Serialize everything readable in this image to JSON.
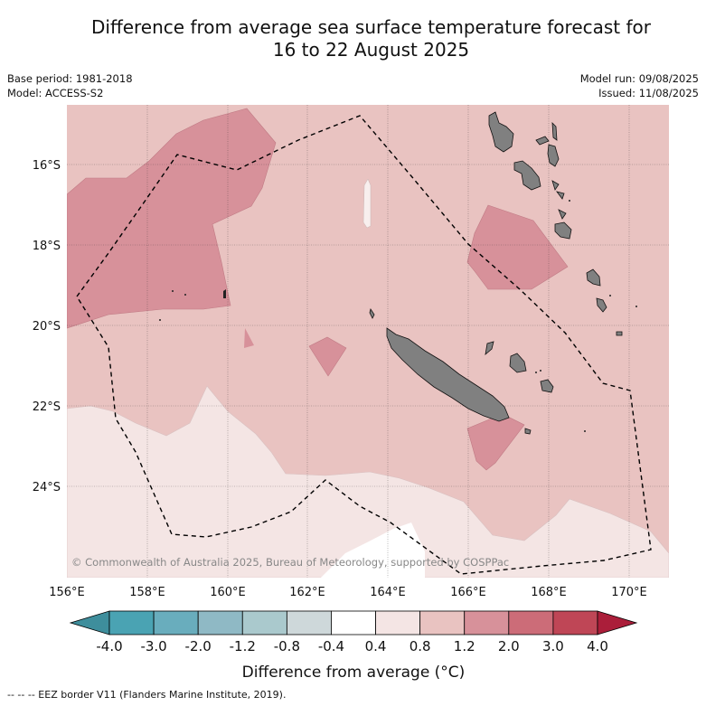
{
  "title_line1": "Difference from average sea surface temperature forecast for",
  "title_line2": "16 to 22 August 2025",
  "base_period": "Base period: 1981-2018",
  "model": "Model: ACCESS-S2",
  "model_run": "Model run: 09/08/2025",
  "issued": "Issued: 11/08/2025",
  "copyright": "© Commonwealth of Australia 2025, Bureau of Meteorology, supported by COSPPac",
  "lon_labels": [
    "156°E",
    "158°E",
    "160°E",
    "162°E",
    "164°E",
    "166°E",
    "168°E",
    "170°E"
  ],
  "lat_labels": [
    "16°S",
    "18°S",
    "20°S",
    "22°S",
    "24°S"
  ],
  "colorbar": {
    "ticks": [
      "-4.0",
      "-3.0",
      "-2.0",
      "-1.2",
      "-0.8",
      "-0.4",
      "0.4",
      "0.8",
      "1.2",
      "2.0",
      "3.0",
      "4.0"
    ],
    "colors": [
      "#3e8e9c",
      "#4aa3b3",
      "#69adbd",
      "#8fb9c5",
      "#aac9cd",
      "#ced8da",
      "#ffffff",
      "#f4e5e4",
      "#e9c3c1",
      "#d7919a",
      "#cc6c78",
      "#bf4656",
      "#ab1e3a"
    ],
    "title": "Difference from average (°C)"
  },
  "footer": "-- -- -- EEZ border V11 (Flanders Marine Institute, 2019).",
  "colors": {
    "land": "#808080",
    "c0408": "#f4e5e4",
    "c0812": "#e9c3c1",
    "c1220": "#d7919a",
    "c2030": "#cc6c78"
  }
}
